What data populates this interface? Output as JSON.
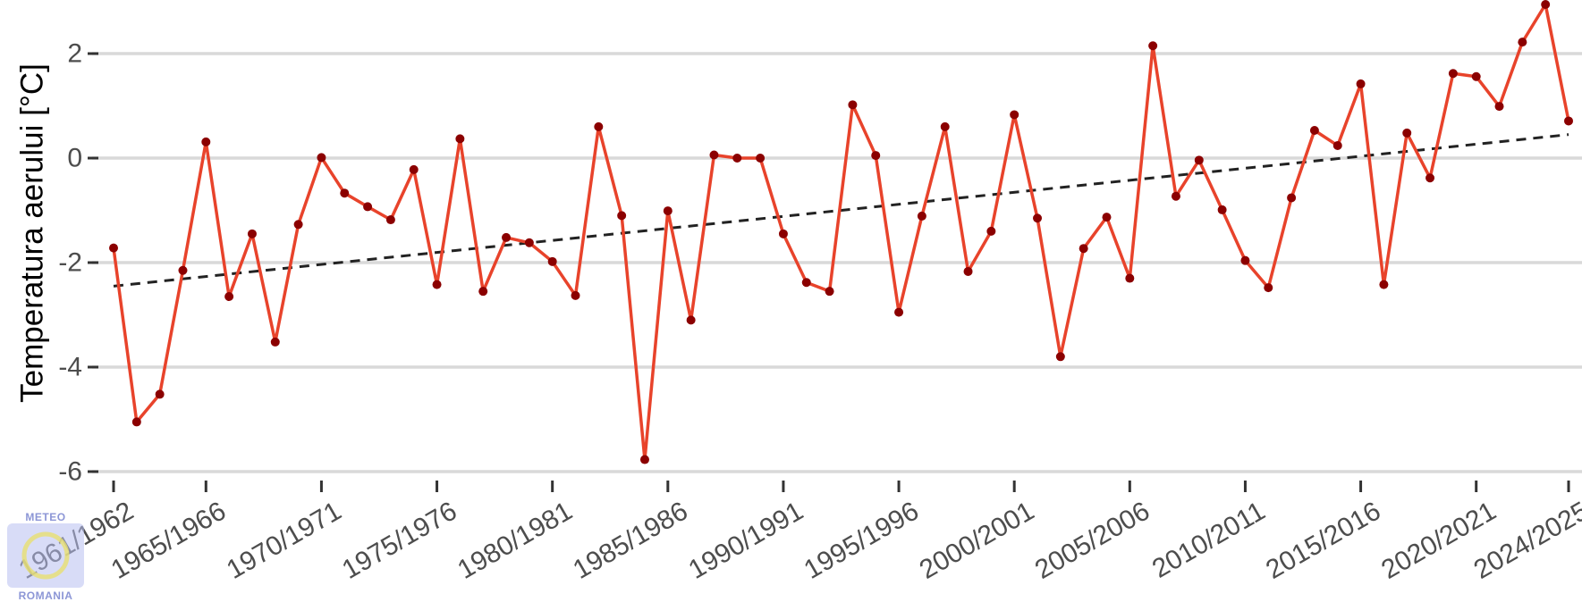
{
  "chart_data": {
    "type": "line",
    "title": "",
    "xlabel": "",
    "ylabel": "Temperatura aerului [°C]",
    "ylim": [
      -6.2,
      2.95
    ],
    "yticks": [
      2,
      0,
      -2,
      -4,
      -6
    ],
    "ytick_labels": [
      "2",
      "0",
      "-2",
      "-4",
      "-6"
    ],
    "xtick_labels": [
      "1961/1962",
      "1965/1966",
      "1970/1971",
      "1975/1976",
      "1980/1981",
      "1985/1986",
      "1990/1991",
      "1995/1996",
      "2000/2001",
      "2005/2006",
      "2010/2011",
      "2015/2016",
      "2020/2021",
      "2024/2025"
    ],
    "xtick_years": [
      1961,
      1965,
      1970,
      1975,
      1980,
      1985,
      1990,
      1995,
      2000,
      2005,
      2010,
      2015,
      2020,
      2024
    ],
    "grid": true,
    "legend": "none",
    "series": [
      {
        "x": [
          1961,
          1962,
          1963,
          1964,
          1965,
          1966,
          1967,
          1968,
          1969,
          1970,
          1971,
          1972,
          1973,
          1974,
          1975,
          1976,
          1977,
          1978,
          1979,
          1980,
          1981,
          1982,
          1983,
          1984,
          1985,
          1986,
          1987,
          1988,
          1989,
          1990,
          1991,
          1992,
          1993,
          1994,
          1995,
          1996,
          1997,
          1998,
          1999,
          2000,
          2001,
          2002,
          2003,
          2004,
          2005,
          2006,
          2007,
          2008,
          2009,
          2010,
          2011,
          2012,
          2013,
          2014,
          2015,
          2016,
          2017,
          2018,
          2019,
          2020,
          2021,
          2022,
          2023,
          2024
        ],
        "values": [
          -1.72,
          -5.05,
          -4.52,
          -2.15,
          0.31,
          -2.65,
          -1.45,
          -3.52,
          -1.27,
          0.01,
          -0.67,
          -0.93,
          -1.18,
          -0.22,
          -2.42,
          0.37,
          -2.55,
          -1.52,
          -1.62,
          -1.98,
          -2.63,
          0.6,
          -1.1,
          -5.77,
          -1.01,
          -3.1,
          0.06,
          0.0,
          0.0,
          -1.45,
          -2.38,
          -2.55,
          1.02,
          0.05,
          -2.95,
          -1.11,
          0.6,
          -2.17,
          -1.4,
          0.83,
          -1.15,
          -3.8,
          -1.73,
          -1.13,
          -2.3,
          2.15,
          -0.73,
          -0.04,
          -0.99,
          -1.96,
          -2.48,
          -0.76,
          0.53,
          0.24,
          1.42,
          -2.42,
          0.48,
          -0.38,
          1.62,
          1.56,
          0.99,
          2.22,
          2.94,
          0.71
        ]
      }
    ],
    "trend": {
      "x": [
        1961,
        2024
      ],
      "values": [
        -2.45,
        0.45
      ]
    },
    "colors": {
      "line": "#e8432b",
      "points": "#8b0000",
      "trend": "#222222",
      "grid": "#d9d9d9",
      "tick": "#333333"
    }
  },
  "logo": {
    "top_text": "METEO",
    "bottom_text": "ROMANIA"
  }
}
